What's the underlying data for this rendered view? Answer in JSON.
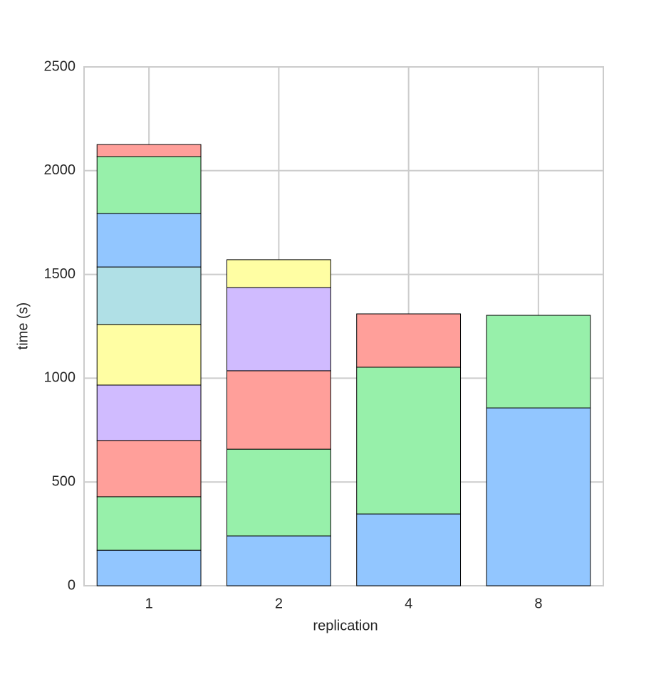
{
  "chart_data": {
    "type": "stacked_bar",
    "x_label": "replication",
    "y_label": "time (s)",
    "categories": [
      "1",
      "2",
      "4",
      "8"
    ],
    "series": [
      {
        "color": "#92c6ff",
        "values": [
          171,
          240,
          346,
          857
        ]
      },
      {
        "color": "#97f0aa",
        "values": [
          258,
          418,
          707,
          446
        ]
      },
      {
        "color": "#ff9f9a",
        "values": [
          271,
          378,
          257,
          null
        ]
      },
      {
        "color": "#d0bbff",
        "values": [
          267,
          401,
          null,
          null
        ]
      },
      {
        "color": "#fffea3",
        "values": [
          292,
          134,
          null,
          null
        ]
      },
      {
        "color": "#b0e0e6",
        "values": [
          277,
          null,
          null,
          null
        ]
      },
      {
        "color": "#92c6ff",
        "values": [
          258,
          null,
          null,
          null
        ]
      },
      {
        "color": "#97f0aa",
        "values": [
          274,
          null,
          null,
          null
        ]
      },
      {
        "color": "#ff9f9a",
        "values": [
          58,
          null,
          null,
          null
        ]
      }
    ],
    "ylim": [
      0,
      2500
    ],
    "yticks": [
      0,
      500,
      1000,
      1500,
      2000,
      2500
    ],
    "grid": true
  }
}
